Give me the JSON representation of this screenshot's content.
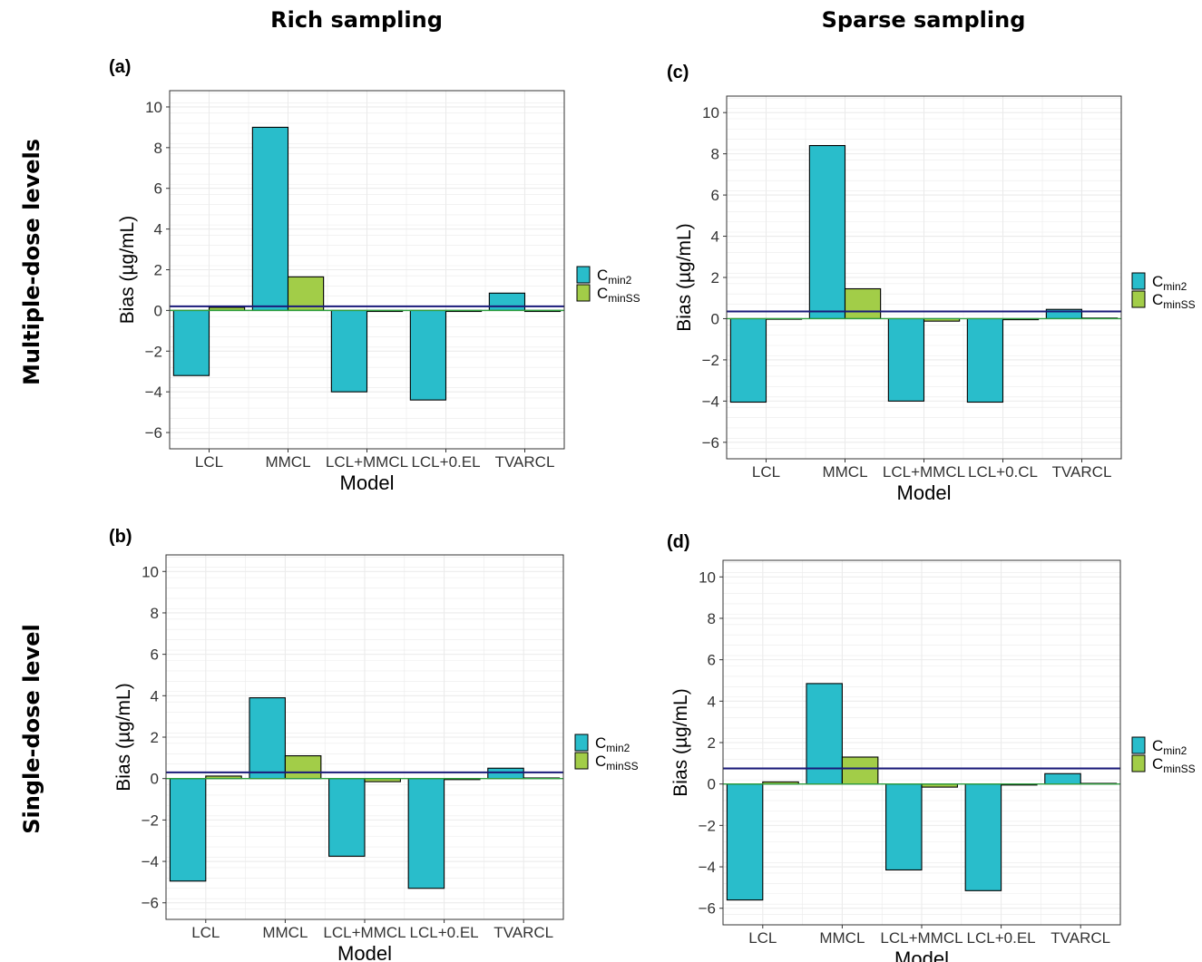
{
  "headers": {
    "col_left": "Rich sampling",
    "col_right": "Sparse sampling",
    "row_top": "Multiple-dose levels",
    "row_bottom": "Single-dose level"
  },
  "colors": {
    "cmin2": "#29BDCB",
    "cminss": "#A2CD48",
    "hline": "#1A1A7A",
    "grid": "#EBEBEB",
    "zero_line": "#2E9E3E"
  },
  "chart_data": [
    {
      "panel": "(a)",
      "type": "bar",
      "categories": [
        "LCL",
        "MMCL",
        "LCL+MMCL",
        "LCL+0.EL",
        "TVARCL"
      ],
      "series": [
        {
          "name": "Cmin2",
          "legend_main": "C",
          "legend_sub": "min2",
          "values": [
            -3.2,
            9.0,
            -4.0,
            -4.4,
            0.85
          ]
        },
        {
          "name": "CminSS",
          "legend_main": "C",
          "legend_sub": "minSS",
          "values": [
            0.15,
            1.65,
            -0.05,
            -0.05,
            -0.05
          ]
        }
      ],
      "hline": 0.2,
      "xlabel": "Model",
      "ylabel": "Bias (µg/mL)",
      "ylim": [
        -6.8,
        10.8
      ],
      "yticks": [
        -6,
        -4,
        -2,
        0,
        2,
        4,
        6,
        8,
        10
      ]
    },
    {
      "panel": "(c)",
      "type": "bar",
      "categories": [
        "LCL",
        "MMCL",
        "LCL+MMCL",
        "LCL+0.CL",
        "TVARCL"
      ],
      "series": [
        {
          "name": "Cmin2",
          "legend_main": "C",
          "legend_sub": "min2",
          "values": [
            -4.05,
            8.4,
            -4.0,
            -4.05,
            0.45
          ]
        },
        {
          "name": "CminSS",
          "legend_main": "C",
          "legend_sub": "minSS",
          "values": [
            -0.03,
            1.45,
            -0.12,
            -0.05,
            0.03
          ]
        }
      ],
      "hline": 0.35,
      "xlabel": "Model",
      "ylabel": "Bias (µg/mL)",
      "ylim": [
        -6.8,
        10.8
      ],
      "yticks": [
        -6,
        -4,
        -2,
        0,
        2,
        4,
        6,
        8,
        10
      ]
    },
    {
      "panel": "(b)",
      "type": "bar",
      "categories": [
        "LCL",
        "MMCL",
        "LCL+MMCL",
        "LCL+0.EL",
        "TVARCL"
      ],
      "series": [
        {
          "name": "Cmin2",
          "legend_main": "C",
          "legend_sub": "min2",
          "values": [
            -4.95,
            3.9,
            -3.75,
            -5.3,
            0.5
          ]
        },
        {
          "name": "CminSS",
          "legend_main": "C",
          "legend_sub": "minSS",
          "values": [
            0.12,
            1.1,
            -0.15,
            -0.05,
            0.03
          ]
        }
      ],
      "hline": 0.3,
      "xlabel": "Model",
      "ylabel": "Bias (µg/mL)",
      "ylim": [
        -6.8,
        10.8
      ],
      "yticks": [
        -6,
        -4,
        -2,
        0,
        2,
        4,
        6,
        8,
        10
      ]
    },
    {
      "panel": "(d)",
      "type": "bar",
      "categories": [
        "LCL",
        "MMCL",
        "LCL+MMCL",
        "LCL+0.EL",
        "TVARCL"
      ],
      "series": [
        {
          "name": "Cmin2",
          "legend_main": "C",
          "legend_sub": "min2",
          "values": [
            -5.6,
            4.85,
            -4.15,
            -5.15,
            0.5
          ]
        },
        {
          "name": "CminSS",
          "legend_main": "C",
          "legend_sub": "minSS",
          "values": [
            0.1,
            1.3,
            -0.15,
            -0.05,
            0.03
          ]
        }
      ],
      "hline": 0.75,
      "xlabel": "Model",
      "ylabel": "Bias (µg/mL)",
      "ylim": [
        -6.8,
        10.8
      ],
      "yticks": [
        -6,
        -4,
        -2,
        0,
        2,
        4,
        6,
        8,
        10
      ]
    }
  ]
}
